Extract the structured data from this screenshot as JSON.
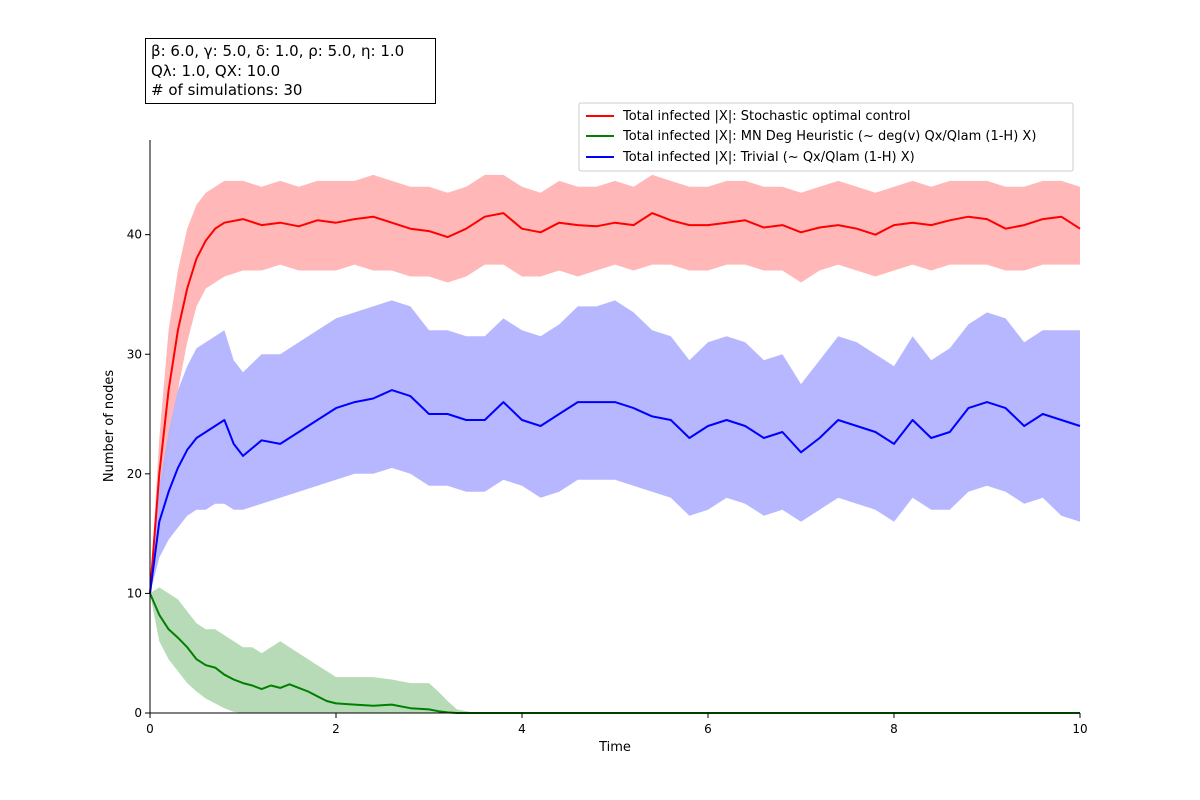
{
  "params_box": {
    "line1": "β: 6.0, γ: 5.0, δ: 1.0, ρ: 5.0, η: 1.0",
    "line2": "Qλ: 1.0, QX: 10.0",
    "line3": "# of simulations: 30"
  },
  "chart_data": {
    "type": "line",
    "title": "",
    "xlabel": "Time",
    "ylabel": "Number of nodes",
    "xlim": [
      0,
      10
    ],
    "ylim": [
      0,
      48
    ],
    "xticks": [
      0,
      2,
      4,
      6,
      8,
      10
    ],
    "yticks": [
      0,
      10,
      20,
      30,
      40
    ],
    "grid": false,
    "legend_position": "upper-right",
    "series": [
      {
        "name": "Total infected |X|: Stochastic optimal control",
        "color": "#ff0000",
        "band_color": "#ffb3b3",
        "x": [
          0,
          0.1,
          0.2,
          0.3,
          0.4,
          0.5,
          0.6,
          0.7,
          0.8,
          1,
          1.2,
          1.4,
          1.6,
          1.8,
          2,
          2.2,
          2.4,
          2.6,
          2.8,
          3,
          3.2,
          3.4,
          3.6,
          3.8,
          4,
          4.2,
          4.4,
          4.6,
          4.8,
          5,
          5.2,
          5.4,
          5.6,
          5.8,
          6,
          6.2,
          6.4,
          6.6,
          6.8,
          7,
          7.2,
          7.4,
          7.6,
          7.8,
          8,
          8.2,
          8.4,
          8.6,
          8.8,
          9,
          9.2,
          9.4,
          9.6,
          9.8,
          10
        ],
        "y": [
          10,
          20,
          27,
          32,
          35.5,
          38,
          39.5,
          40.5,
          41,
          41.3,
          40.8,
          41,
          40.7,
          41.2,
          41,
          41.3,
          41.5,
          41,
          40.5,
          40.3,
          39.8,
          40.5,
          41.5,
          41.8,
          40.5,
          40.2,
          41,
          40.8,
          40.7,
          41,
          40.8,
          41.8,
          41.2,
          40.8,
          40.8,
          41,
          41.2,
          40.6,
          40.8,
          40.2,
          40.6,
          40.8,
          40.5,
          40,
          40.8,
          41,
          40.8,
          41.2,
          41.5,
          41.3,
          40.5,
          40.8,
          41.3,
          41.5,
          40.5
        ],
        "low": [
          10,
          16,
          22,
          27,
          31,
          34,
          35.5,
          36,
          36.5,
          37,
          37,
          37.5,
          37,
          37,
          37,
          37.5,
          37,
          37,
          36.5,
          36.5,
          36,
          36.5,
          37.5,
          37.5,
          36.5,
          36.5,
          37,
          36.5,
          37,
          37.5,
          37,
          37.5,
          37.5,
          37,
          37,
          37.5,
          37.5,
          37,
          37,
          36,
          37,
          37.5,
          37,
          36.5,
          37,
          37.5,
          37,
          37.5,
          37.5,
          37.5,
          37,
          37,
          37.5,
          37.5,
          37.5
        ],
        "high": [
          10,
          23,
          32,
          37,
          40.5,
          42.5,
          43.5,
          44,
          44.5,
          44.5,
          44,
          44.5,
          44,
          44.5,
          44.5,
          44.5,
          45,
          44.5,
          44,
          44,
          43.5,
          44,
          45,
          45,
          44,
          43.5,
          44.5,
          44,
          44,
          44.5,
          44,
          45,
          44.5,
          44,
          44,
          44.5,
          44.5,
          44,
          44,
          43.5,
          44,
          44.5,
          44,
          43.5,
          44,
          44.5,
          44,
          44.5,
          44.5,
          44.5,
          44,
          44,
          44.5,
          44.5,
          44
        ]
      },
      {
        "name": "Total infected |X|: MN Deg Heuristic (~ deg(v) Qx/Qlam (1-H) X)",
        "color": "#008000",
        "band_color": "#b2d9b2",
        "x": [
          0,
          0.1,
          0.2,
          0.3,
          0.4,
          0.5,
          0.6,
          0.7,
          0.8,
          0.9,
          1,
          1.1,
          1.2,
          1.3,
          1.4,
          1.5,
          1.6,
          1.7,
          1.8,
          1.9,
          2,
          2.2,
          2.4,
          2.6,
          2.8,
          3,
          3.1,
          3.2,
          3.3,
          3.5,
          4,
          5,
          6,
          7,
          8,
          9,
          10
        ],
        "y": [
          10,
          8.2,
          7,
          6.3,
          5.5,
          4.5,
          4,
          3.8,
          3.2,
          2.8,
          2.5,
          2.3,
          2,
          2.3,
          2.1,
          2.4,
          2.1,
          1.8,
          1.4,
          1,
          0.8,
          0.7,
          0.6,
          0.7,
          0.4,
          0.3,
          0.15,
          0.05,
          0,
          0,
          0,
          0,
          0,
          0,
          0,
          0,
          0
        ],
        "low": [
          10,
          6,
          4.5,
          3.5,
          2.5,
          1.8,
          1.2,
          0.8,
          0.4,
          0.1,
          0,
          0,
          0,
          0,
          0,
          0,
          0,
          0,
          0,
          0,
          0,
          0,
          0,
          0,
          0,
          0,
          0,
          0,
          0,
          0,
          0,
          0,
          0,
          0,
          0,
          0,
          0
        ],
        "high": [
          10,
          10.5,
          10,
          9.5,
          8.5,
          7.5,
          7,
          7,
          6.5,
          6,
          5.5,
          5.5,
          5,
          5.5,
          6,
          5.5,
          5,
          4.5,
          4,
          3.5,
          3,
          3,
          3,
          2.8,
          2.5,
          2.5,
          1.8,
          1,
          0.3,
          0,
          0,
          0,
          0,
          0,
          0,
          0,
          0
        ]
      },
      {
        "name": "Total infected |X|: Trivial (~ Qx/Qlam (1-H) X)",
        "color": "#0000ff",
        "band_color": "#b3b3ff",
        "x": [
          0,
          0.1,
          0.2,
          0.3,
          0.4,
          0.5,
          0.6,
          0.7,
          0.8,
          0.9,
          1,
          1.2,
          1.4,
          1.6,
          1.8,
          2,
          2.2,
          2.4,
          2.6,
          2.8,
          3,
          3.2,
          3.4,
          3.6,
          3.8,
          4,
          4.2,
          4.4,
          4.6,
          4.8,
          5,
          5.2,
          5.4,
          5.6,
          5.8,
          6,
          6.2,
          6.4,
          6.6,
          6.8,
          7,
          7.2,
          7.4,
          7.6,
          7.8,
          8,
          8.2,
          8.4,
          8.6,
          8.8,
          9,
          9.2,
          9.4,
          9.6,
          9.8,
          10
        ],
        "y": [
          10,
          16,
          18.5,
          20.5,
          22,
          23,
          23.5,
          24,
          24.5,
          22.5,
          21.5,
          22.8,
          22.5,
          23.5,
          24.5,
          25.5,
          26,
          26.3,
          27,
          26.5,
          25,
          25,
          24.5,
          24.5,
          26,
          24.5,
          24,
          25,
          26,
          26,
          26,
          25.5,
          24.8,
          24.5,
          23,
          24,
          24.5,
          24,
          23,
          23.5,
          21.8,
          23,
          24.5,
          24,
          23.5,
          22.5,
          24.5,
          23,
          23.5,
          25.5,
          26,
          25.5,
          24,
          25,
          24.5,
          24
        ],
        "low": [
          10,
          13,
          14.5,
          15.5,
          16.5,
          17,
          17,
          17.5,
          17.5,
          17,
          17,
          17.5,
          18,
          18.5,
          19,
          19.5,
          20,
          20,
          20.5,
          20,
          19,
          19,
          18.5,
          18.5,
          19.5,
          19,
          18,
          18.5,
          19.5,
          19.5,
          19.5,
          19,
          18.5,
          18,
          16.5,
          17,
          18,
          17.5,
          16.5,
          17,
          16,
          17,
          18,
          17.5,
          17,
          16,
          18,
          17,
          17,
          18.5,
          19,
          18.5,
          17.5,
          18,
          16.5,
          16
        ],
        "high": [
          10,
          19,
          23.5,
          27,
          29,
          30.5,
          31,
          31.5,
          32,
          29.5,
          28.5,
          30,
          30,
          31,
          32,
          33,
          33.5,
          34,
          34.5,
          34,
          32,
          32,
          31.5,
          31.5,
          33,
          32,
          31.5,
          32.5,
          34,
          34,
          34.5,
          33.5,
          32,
          31.5,
          29.5,
          31,
          31.5,
          31,
          29.5,
          30,
          27.5,
          29.5,
          31.5,
          31,
          30,
          29,
          31.5,
          29.5,
          30.5,
          32.5,
          33.5,
          33,
          31,
          32,
          32,
          32
        ]
      }
    ]
  }
}
